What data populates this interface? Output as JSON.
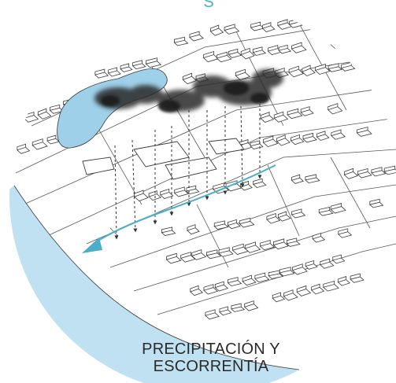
{
  "top_text": "S",
  "caption_line1": "PRECIPITACIÓN Y",
  "caption_line2": "ESCORRENTÍA",
  "colors": {
    "water_light": "#bfe1f1",
    "water_lake": "#9fd0ea",
    "runoff_arrow": "#4aaec8",
    "line": "#3a3a3a",
    "cloud": "#2b2b2b"
  },
  "icons": [
    "cloud-icon",
    "rain-arrow-icon",
    "runoff-arrow-icon"
  ]
}
